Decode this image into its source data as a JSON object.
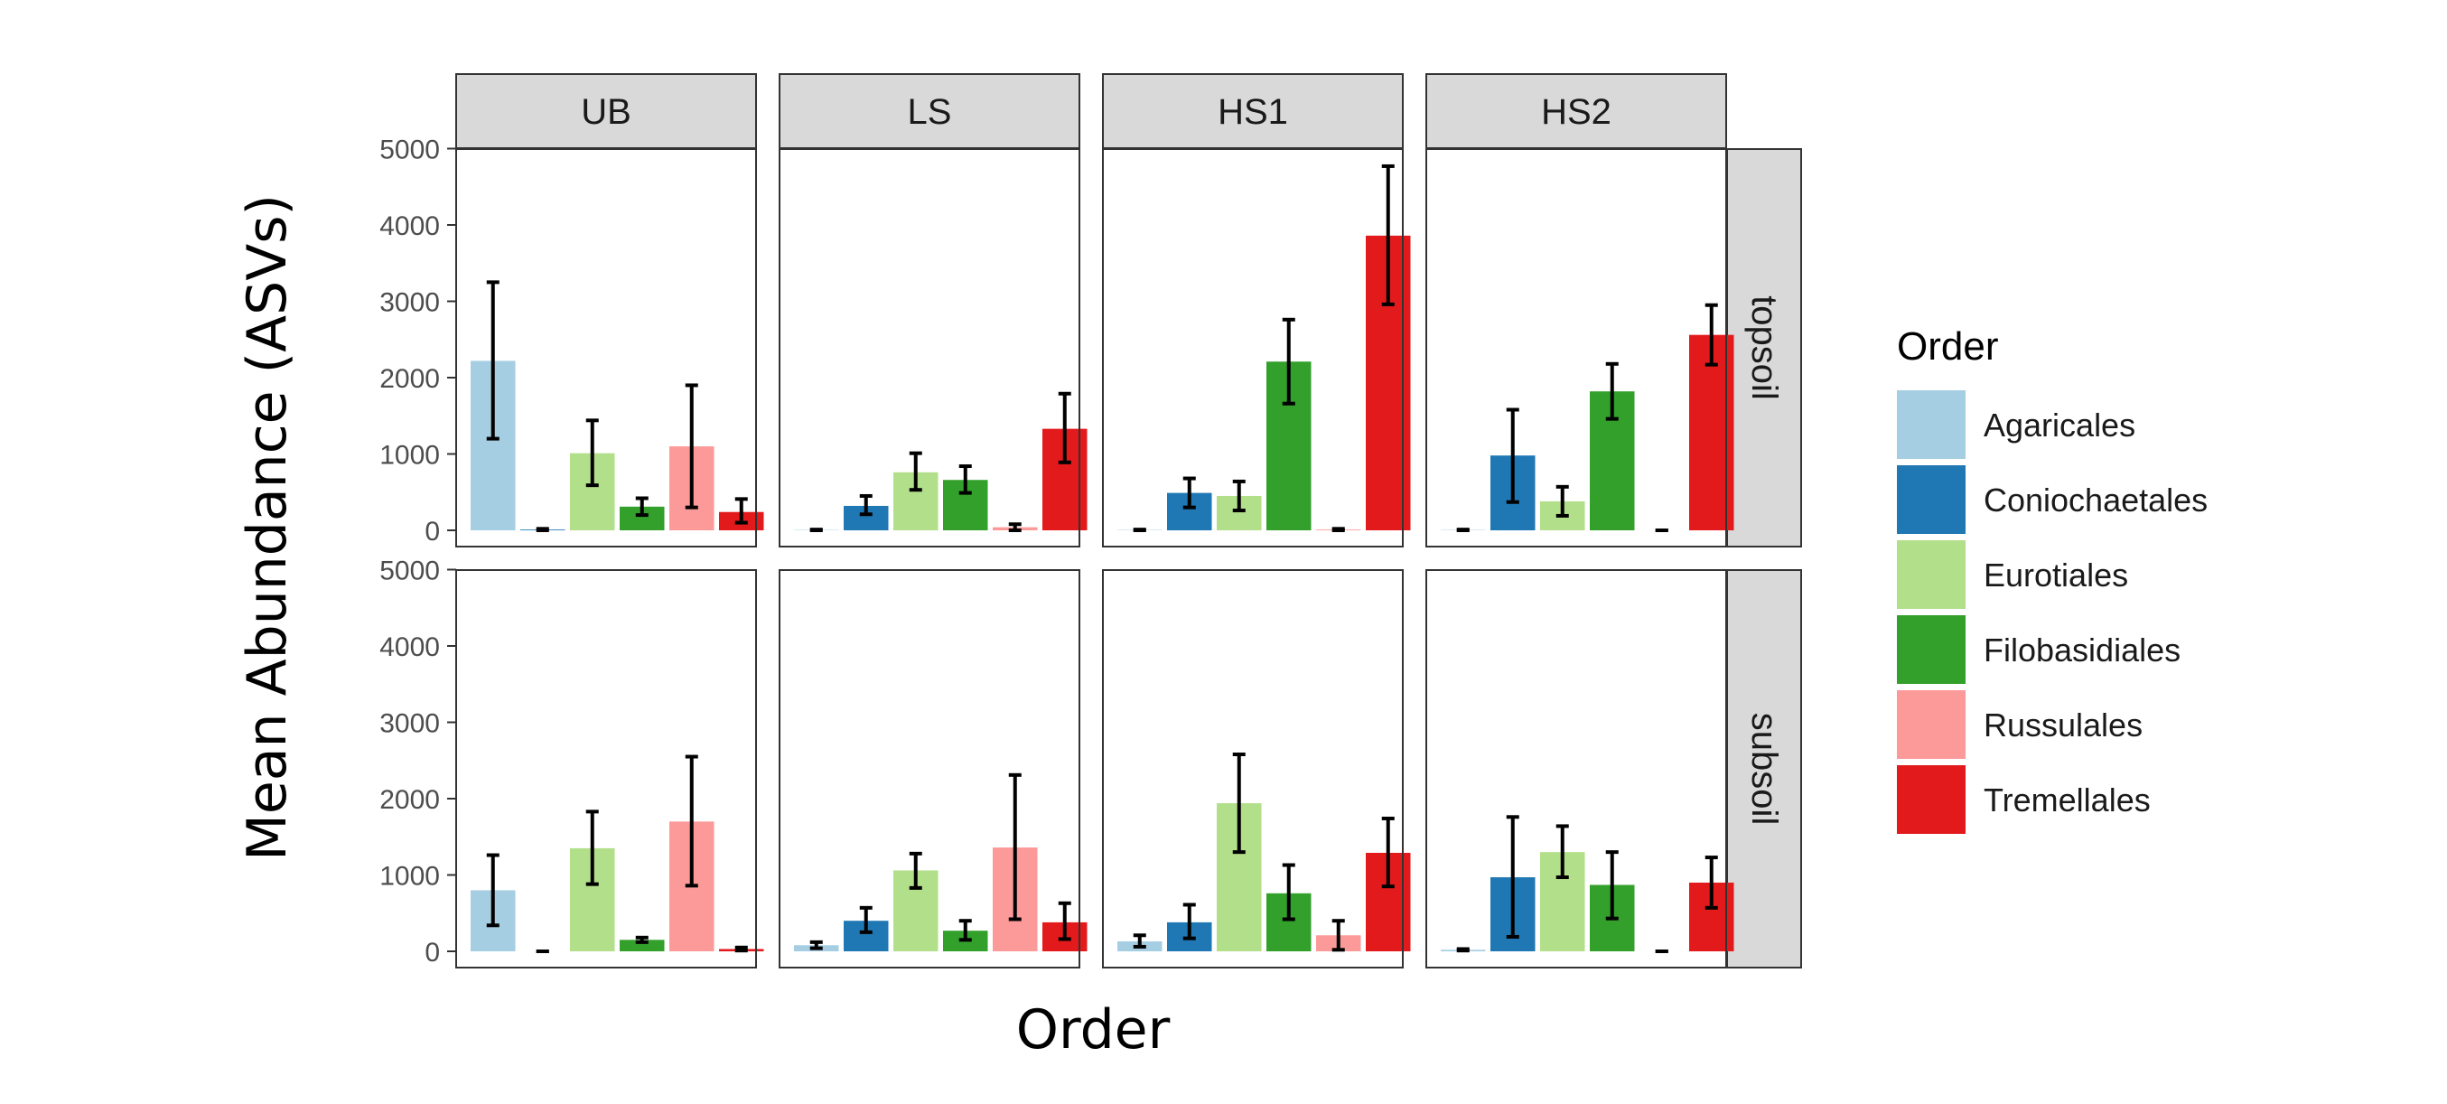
{
  "chart_data": {
    "type": "bar",
    "facet_cols": [
      "UB",
      "LS",
      "HS1",
      "HS2"
    ],
    "facet_rows": [
      "topsoil",
      "subsoil"
    ],
    "categories": [
      "Agaricales",
      "Coniochaetales",
      "Eurotiales",
      "Filobasidiales",
      "Russulales",
      "Tremellales"
    ],
    "xlabel": "Order",
    "ylabel": "Mean Abundance (ASVs)",
    "ylim": [
      0,
      5000
    ],
    "yticks": [
      0,
      1000,
      2000,
      3000,
      4000,
      5000
    ],
    "grid": false,
    "legend": {
      "title": "Order",
      "placement": "right",
      "items": [
        "Agaricales",
        "Coniochaetales",
        "Eurotiales",
        "Filobasidiales",
        "Russulales",
        "Tremellales"
      ]
    },
    "colors": {
      "Agaricales": "#a6cee3",
      "Coniochaetales": "#1f78b4",
      "Eurotiales": "#b2df8a",
      "Filobasidiales": "#33a02c",
      "Russulales": "#fb9a99",
      "Tremellales": "#e31a1c"
    },
    "panels": [
      {
        "col": "UB",
        "row": "topsoil",
        "values": [
          2220,
          10,
          1010,
          310,
          1100,
          240
        ],
        "err_low": [
          1200,
          0,
          590,
          200,
          300,
          100
        ],
        "err_high": [
          3250,
          20,
          1440,
          420,
          1900,
          410
        ]
      },
      {
        "col": "LS",
        "row": "topsoil",
        "values": [
          5,
          320,
          760,
          660,
          40,
          1330
        ],
        "err_low": [
          0,
          210,
          530,
          490,
          0,
          890
        ],
        "err_high": [
          10,
          450,
          1010,
          840,
          80,
          1790
        ]
      },
      {
        "col": "HS1",
        "row": "topsoil",
        "values": [
          5,
          490,
          450,
          2210,
          10,
          3860
        ],
        "err_low": [
          0,
          300,
          260,
          1660,
          0,
          2960
        ],
        "err_high": [
          10,
          680,
          640,
          2760,
          20,
          4770
        ]
      },
      {
        "col": "HS2",
        "row": "topsoil",
        "values": [
          5,
          980,
          380,
          1820,
          0,
          2560
        ],
        "err_low": [
          0,
          370,
          190,
          1460,
          0,
          2170
        ],
        "err_high": [
          10,
          1580,
          570,
          2180,
          0,
          2950
        ]
      },
      {
        "col": "UB",
        "row": "subsoil",
        "values": [
          800,
          0,
          1350,
          150,
          1700,
          30
        ],
        "err_low": [
          340,
          0,
          880,
          120,
          860,
          10
        ],
        "err_high": [
          1260,
          0,
          1830,
          180,
          2550,
          50
        ]
      },
      {
        "col": "LS",
        "row": "subsoil",
        "values": [
          80,
          400,
          1060,
          270,
          1360,
          380
        ],
        "err_low": [
          40,
          250,
          830,
          150,
          420,
          160
        ],
        "err_high": [
          120,
          570,
          1280,
          400,
          2310,
          630
        ]
      },
      {
        "col": "HS1",
        "row": "subsoil",
        "values": [
          130,
          380,
          1940,
          760,
          210,
          1290
        ],
        "err_low": [
          60,
          170,
          1300,
          420,
          20,
          850
        ],
        "err_high": [
          210,
          610,
          2580,
          1130,
          400,
          1740
        ]
      },
      {
        "col": "HS2",
        "row": "subsoil",
        "values": [
          20,
          970,
          1300,
          870,
          0,
          900
        ],
        "err_low": [
          10,
          190,
          970,
          430,
          0,
          570
        ],
        "err_high": [
          30,
          1760,
          1640,
          1300,
          0,
          1230
        ]
      }
    ]
  }
}
